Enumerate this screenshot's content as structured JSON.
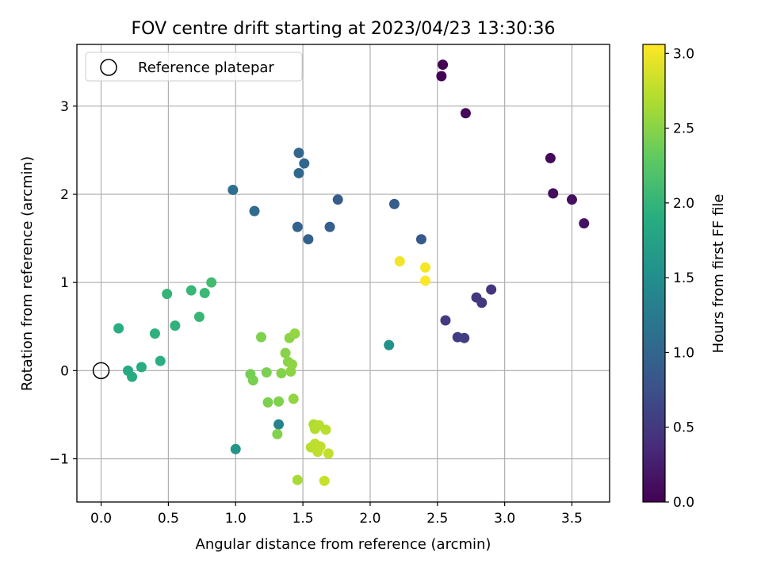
{
  "chart_data": {
    "type": "scatter",
    "title": "FOV centre drift starting at 2023/04/23 13:30:36",
    "xlabel": "Angular distance from reference (arcmin)",
    "ylabel": "Rotation from reference (arcmin)",
    "xlim": [
      -0.18,
      3.78
    ],
    "ylim": [
      -1.49,
      3.7
    ],
    "xticks": [
      0.0,
      0.5,
      1.0,
      1.5,
      2.0,
      2.5,
      3.0,
      3.5
    ],
    "xtick_labels": [
      "0.0",
      "0.5",
      "1.0",
      "1.5",
      "2.0",
      "2.5",
      "3.0",
      "3.5"
    ],
    "yticks": [
      -1,
      0,
      1,
      2,
      3
    ],
    "ytick_labels": [
      "−1",
      "0",
      "1",
      "2",
      "3"
    ],
    "grid": true,
    "legend": {
      "placement": "top-left",
      "entries": [
        "Reference platepar"
      ]
    },
    "reference_point": {
      "x": 0.0,
      "y": 0.0
    },
    "colorbar": {
      "label": "Hours from first FF file",
      "colormap": "viridis",
      "range": [
        0.0,
        3.06
      ],
      "ticks": [
        0.0,
        0.5,
        1.0,
        1.5,
        2.0,
        2.5,
        3.0
      ],
      "tick_labels": [
        "0.0",
        "0.5",
        "1.0",
        "1.5",
        "2.0",
        "2.5",
        "3.0"
      ]
    },
    "points": [
      {
        "x": 2.54,
        "y": 3.47,
        "c": 0.0
      },
      {
        "x": 2.53,
        "y": 3.34,
        "c": 0.02
      },
      {
        "x": 2.71,
        "y": 2.92,
        "c": 0.05
      },
      {
        "x": 3.34,
        "y": 2.41,
        "c": 0.07
      },
      {
        "x": 3.36,
        "y": 2.01,
        "c": 0.1
      },
      {
        "x": 3.5,
        "y": 1.94,
        "c": 0.12
      },
      {
        "x": 3.59,
        "y": 1.67,
        "c": 0.15
      },
      {
        "x": 2.9,
        "y": 0.92,
        "c": 0.45
      },
      {
        "x": 2.79,
        "y": 0.83,
        "c": 0.48
      },
      {
        "x": 2.83,
        "y": 0.77,
        "c": 0.5
      },
      {
        "x": 2.56,
        "y": 0.57,
        "c": 0.52
      },
      {
        "x": 2.65,
        "y": 0.38,
        "c": 0.55
      },
      {
        "x": 2.7,
        "y": 0.37,
        "c": 0.57
      },
      {
        "x": 2.38,
        "y": 1.49,
        "c": 0.85
      },
      {
        "x": 2.18,
        "y": 1.89,
        "c": 0.88
      },
      {
        "x": 1.76,
        "y": 1.94,
        "c": 0.9
      },
      {
        "x": 1.7,
        "y": 1.63,
        "c": 0.92
      },
      {
        "x": 1.54,
        "y": 1.49,
        "c": 0.95
      },
      {
        "x": 1.46,
        "y": 1.63,
        "c": 0.97
      },
      {
        "x": 1.47,
        "y": 2.47,
        "c": 1.0
      },
      {
        "x": 1.51,
        "y": 2.35,
        "c": 1.02
      },
      {
        "x": 1.47,
        "y": 2.24,
        "c": 1.04
      },
      {
        "x": 1.14,
        "y": 1.81,
        "c": 1.08
      },
      {
        "x": 0.98,
        "y": 2.05,
        "c": 1.12
      },
      {
        "x": 1.32,
        "y": -0.61,
        "c": 1.35
      },
      {
        "x": 2.14,
        "y": 0.29,
        "c": 1.55
      },
      {
        "x": 1.0,
        "y": -0.89,
        "c": 1.6
      },
      {
        "x": 0.2,
        "y": 0.0,
        "c": 1.85
      },
      {
        "x": 0.23,
        "y": -0.07,
        "c": 1.87
      },
      {
        "x": 0.3,
        "y": 0.04,
        "c": 1.9
      },
      {
        "x": 0.13,
        "y": 0.48,
        "c": 1.92
      },
      {
        "x": 0.44,
        "y": 0.11,
        "c": 1.93
      },
      {
        "x": 0.4,
        "y": 0.42,
        "c": 1.95
      },
      {
        "x": 0.55,
        "y": 0.51,
        "c": 1.97
      },
      {
        "x": 0.49,
        "y": 0.87,
        "c": 2.0
      },
      {
        "x": 0.67,
        "y": 0.91,
        "c": 2.02
      },
      {
        "x": 0.73,
        "y": 0.61,
        "c": 2.03
      },
      {
        "x": 0.77,
        "y": 0.88,
        "c": 2.05
      },
      {
        "x": 0.82,
        "y": 1.0,
        "c": 2.1
      },
      {
        "x": 1.19,
        "y": 0.38,
        "c": 2.45
      },
      {
        "x": 1.11,
        "y": -0.04,
        "c": 2.4
      },
      {
        "x": 1.13,
        "y": -0.11,
        "c": 2.42
      },
      {
        "x": 1.23,
        "y": -0.02,
        "c": 2.43
      },
      {
        "x": 1.24,
        "y": -0.36,
        "c": 2.44
      },
      {
        "x": 1.32,
        "y": -0.35,
        "c": 2.46
      },
      {
        "x": 1.31,
        "y": -0.72,
        "c": 2.47
      },
      {
        "x": 1.34,
        "y": -0.03,
        "c": 2.48
      },
      {
        "x": 1.37,
        "y": 0.2,
        "c": 2.49
      },
      {
        "x": 1.39,
        "y": 0.1,
        "c": 2.5
      },
      {
        "x": 1.4,
        "y": 0.37,
        "c": 2.51
      },
      {
        "x": 1.41,
        "y": -0.01,
        "c": 2.52
      },
      {
        "x": 1.42,
        "y": 0.07,
        "c": 2.53
      },
      {
        "x": 1.43,
        "y": -0.32,
        "c": 2.54
      },
      {
        "x": 1.44,
        "y": 0.42,
        "c": 2.55
      },
      {
        "x": 1.46,
        "y": -1.24,
        "c": 2.65
      },
      {
        "x": 1.58,
        "y": -0.61,
        "c": 2.7
      },
      {
        "x": 1.59,
        "y": -0.66,
        "c": 2.71
      },
      {
        "x": 1.62,
        "y": -0.62,
        "c": 2.72
      },
      {
        "x": 1.67,
        "y": -0.67,
        "c": 2.73
      },
      {
        "x": 1.56,
        "y": -0.87,
        "c": 2.74
      },
      {
        "x": 1.59,
        "y": -0.83,
        "c": 2.75
      },
      {
        "x": 1.61,
        "y": -0.92,
        "c": 2.76
      },
      {
        "x": 1.63,
        "y": -0.86,
        "c": 2.77
      },
      {
        "x": 1.69,
        "y": -0.94,
        "c": 2.78
      },
      {
        "x": 1.66,
        "y": -1.25,
        "c": 2.8
      },
      {
        "x": 2.22,
        "y": 1.24,
        "c": 3.0
      },
      {
        "x": 2.41,
        "y": 1.17,
        "c": 3.02
      },
      {
        "x": 2.41,
        "y": 1.02,
        "c": 3.05
      }
    ]
  }
}
